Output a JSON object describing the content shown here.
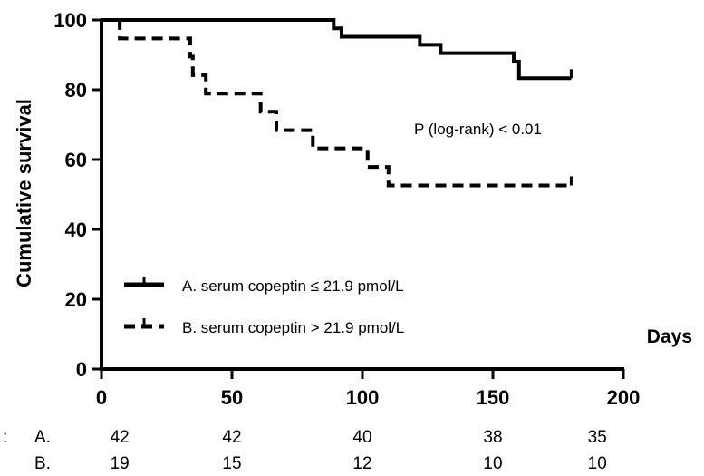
{
  "chart_data": {
    "type": "line",
    "subtype": "kaplan-meier",
    "title": "",
    "ylabel": "Cumulative survival",
    "xlabel": "Days",
    "xlim": [
      0,
      200
    ],
    "ylim": [
      0,
      100
    ],
    "x_ticks": [
      0,
      50,
      100,
      150,
      200
    ],
    "y_ticks": [
      0,
      20,
      40,
      60,
      80,
      100
    ],
    "grid": false,
    "legend_position": "bottom-left",
    "annotation": "P  (log-rank) < 0.01",
    "series": [
      {
        "name": "A. serum copeptin ≤ 21.9 pmol/L",
        "style": "solid",
        "color": "#000000",
        "steps": [
          [
            0,
            100
          ],
          [
            89,
            97.6
          ],
          [
            92,
            95.2
          ],
          [
            122,
            92.9
          ],
          [
            130,
            90.5
          ],
          [
            158,
            88.1
          ],
          [
            160,
            83.3
          ],
          [
            180,
            83.3
          ]
        ],
        "censor": [
          180
        ]
      },
      {
        "name": "B. serum copeptin > 21.9 pmol/L",
        "style": "dashed",
        "color": "#000000",
        "steps": [
          [
            0,
            100
          ],
          [
            7,
            94.7
          ],
          [
            34,
            89.5
          ],
          [
            35,
            84.2
          ],
          [
            40,
            78.9
          ],
          [
            61,
            73.7
          ],
          [
            67,
            68.4
          ],
          [
            81,
            63.2
          ],
          [
            102,
            57.9
          ],
          [
            110,
            52.6
          ],
          [
            180,
            52.6
          ]
        ],
        "censor": [
          180
        ]
      }
    ],
    "risk_table": {
      "label": ":",
      "x": [
        7,
        50,
        100,
        150,
        190
      ],
      "rows": [
        {
          "label": "A.",
          "values": [
            "42",
            "42",
            "40",
            "38",
            "35"
          ]
        },
        {
          "label": "B.",
          "values": [
            "19",
            "15",
            "12",
            "10",
            "10"
          ]
        }
      ]
    }
  }
}
